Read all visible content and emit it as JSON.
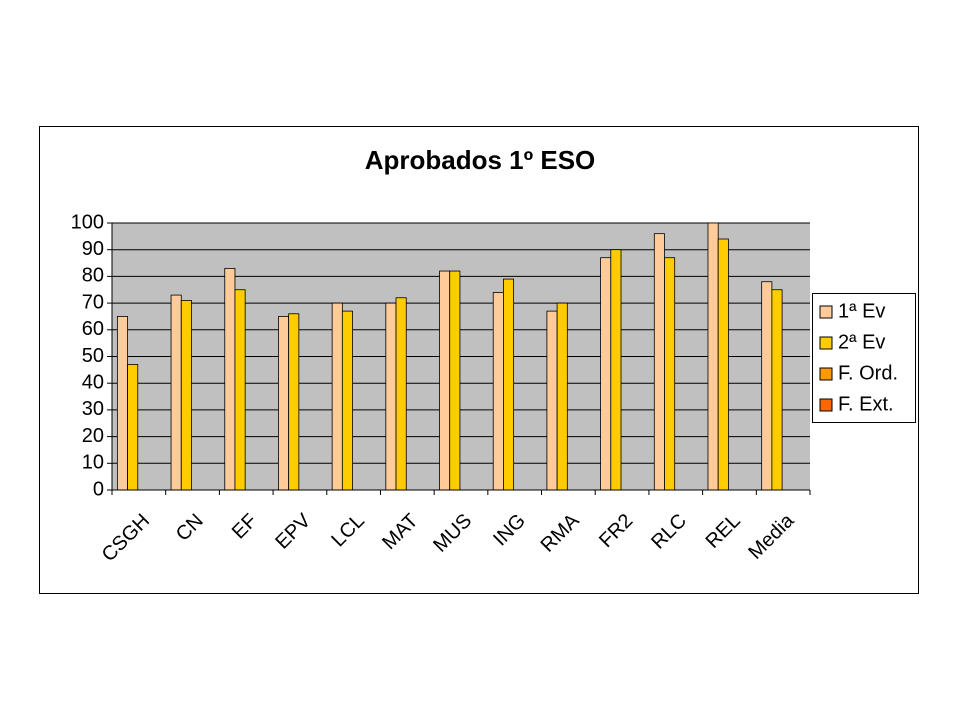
{
  "chart_data": {
    "type": "bar",
    "title": "Aprobados 1º ESO",
    "categories": [
      "CSGH",
      "CN",
      "EF",
      "EPV",
      "LCL",
      "MAT",
      "MUS",
      "ING",
      "RMA",
      "FR2",
      "RLC",
      "REL",
      "Media"
    ],
    "series": [
      {
        "name": "1ª Ev",
        "color": "#ffcc99",
        "values": [
          65,
          73,
          83,
          65,
          70,
          70,
          82,
          74,
          67,
          87,
          96,
          100,
          78
        ]
      },
      {
        "name": "2ª Ev",
        "color": "#ffcc00",
        "values": [
          47,
          71,
          75,
          66,
          67,
          72,
          82,
          79,
          70,
          90,
          87,
          94,
          75
        ]
      },
      {
        "name": "F. Ord.",
        "color": "#ff9900",
        "values": [
          null,
          null,
          null,
          null,
          null,
          null,
          null,
          null,
          null,
          null,
          null,
          null,
          null
        ]
      },
      {
        "name": "F. Ext.",
        "color": "#ff6600",
        "values": [
          null,
          null,
          null,
          null,
          null,
          null,
          null,
          null,
          null,
          null,
          null,
          null,
          null
        ]
      }
    ],
    "ylim": [
      0,
      100
    ],
    "yticks": [
      0,
      10,
      20,
      30,
      40,
      50,
      60,
      70,
      80,
      90,
      100
    ],
    "grid": true,
    "legend": "right"
  }
}
